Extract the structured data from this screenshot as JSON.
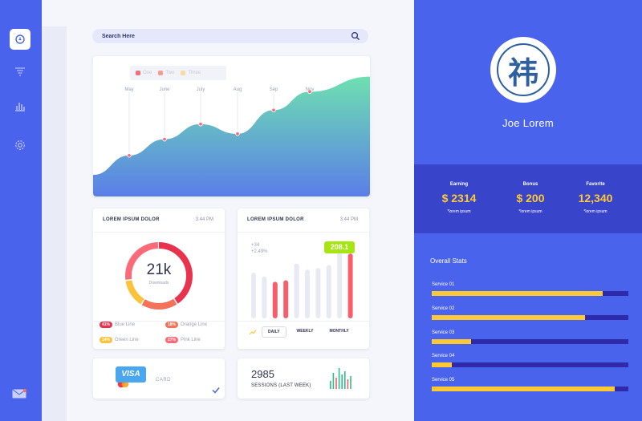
{
  "colors": {
    "primary": "#4a63ec",
    "band": "#3845ca",
    "accent_yellow": "#ffc934",
    "track": "#2f2aa9",
    "green_badge": "#a7e414",
    "bar_red": "#f65e6d",
    "bar_gray": "#e7eaf2"
  },
  "sidebar": {
    "icons": [
      "power-icon",
      "filter-icon",
      "bar-chart-icon",
      "gear-icon",
      "mail-icon"
    ]
  },
  "search": {
    "placeholder": "Search Here",
    "icon": "search-icon"
  },
  "chart_data": {
    "type": "area",
    "categories": [
      "May",
      "June",
      "July",
      "Aug",
      "Sep",
      "Nov"
    ],
    "legend": [
      {
        "name": "One",
        "color": "#f66e7c"
      },
      {
        "name": "Two",
        "color": "#f89a8e"
      },
      {
        "name": "Three",
        "color": "#fcd9a2"
      }
    ],
    "series": [
      {
        "values": [
          38,
          53,
          67,
          58,
          80,
          97
        ]
      }
    ],
    "ylim": [
      0,
      130
    ],
    "grid": true
  },
  "donut_card": {
    "title": "LOREM IPSUM DOLOR",
    "time": "3:44 PM",
    "value": "21k",
    "subtitle": "Downloads",
    "segments": [
      {
        "label": "Blue Line",
        "percent": 41,
        "color": "#e8334f"
      },
      {
        "label": "Orange Line",
        "percent": 18,
        "color": "#f5725a"
      },
      {
        "label": "Green Line",
        "percent": 14,
        "color": "#fbc33b"
      },
      {
        "label": "Pink Line",
        "percent": 27,
        "color": "#fb6a78"
      }
    ],
    "badges": [
      {
        "pill": "41%",
        "label": "Blue Line",
        "color": "#e8334f"
      },
      {
        "pill": "18%",
        "label": "Orange Line",
        "color": "#f5725a"
      },
      {
        "pill": "14%",
        "label": "Green Line",
        "color": "#fbc33b"
      },
      {
        "pill": "27%",
        "label": "Pink Line",
        "color": "#fb6a78"
      }
    ]
  },
  "bar_card": {
    "title": "LOREM IPSUM DOLOR",
    "time": "3:44 PM",
    "stat1": "+34",
    "stat2": "+2.49%",
    "badge": "208.1",
    "bars": [
      {
        "value": 60,
        "highlight": false
      },
      {
        "value": 55,
        "highlight": false
      },
      {
        "value": 48,
        "highlight": true
      },
      {
        "value": 50,
        "highlight": true
      },
      {
        "value": 72,
        "highlight": false
      },
      {
        "value": 64,
        "highlight": false
      },
      {
        "value": 66,
        "highlight": false
      },
      {
        "value": 70,
        "highlight": false
      },
      {
        "value": 95,
        "highlight": false
      },
      {
        "value": 85,
        "highlight": true
      }
    ],
    "tabs": [
      "DAILY",
      "WEEKLY",
      "MONTHLY"
    ],
    "active_tab": "DAILY"
  },
  "visa_card": {
    "brand": "VISA",
    "label": "CARD"
  },
  "sessions_card": {
    "value": "2985",
    "label": "SESSIONS (LAST WEEK)",
    "mini_bars": [
      10,
      20,
      14,
      26,
      18,
      22,
      12,
      16
    ]
  },
  "profile": {
    "avatar_glyph": "祎",
    "name": "Joe Lorem",
    "stats": [
      {
        "label": "Earning",
        "value": "$ 2314",
        "note": "*lorem ipsum"
      },
      {
        "label": "Bonus",
        "value": "$ 200",
        "note": "*lorem ipsum"
      },
      {
        "label": "Favorite",
        "value": "12,340",
        "note": "*lorem ipsum"
      }
    ],
    "overall_title": "Overall Stats",
    "services": [
      {
        "label": "Service  01",
        "percent": 87
      },
      {
        "label": "Service  02",
        "percent": 78
      },
      {
        "label": "Service  03",
        "percent": 20
      },
      {
        "label": "Service  04",
        "percent": 10
      },
      {
        "label": "Service  05",
        "percent": 93
      }
    ]
  }
}
